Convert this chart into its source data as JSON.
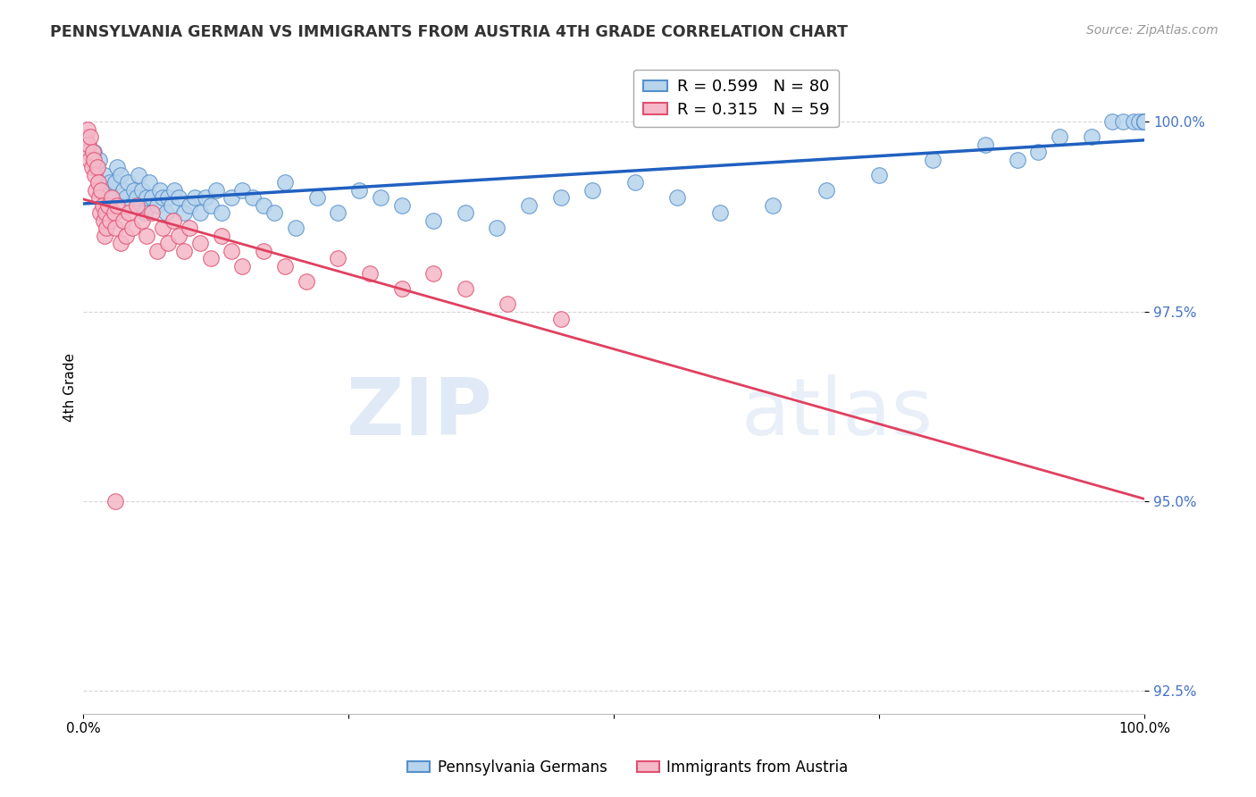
{
  "title": "PENNSYLVANIA GERMAN VS IMMIGRANTS FROM AUSTRIA 4TH GRADE CORRELATION CHART",
  "source": "Source: ZipAtlas.com",
  "ylabel": "4th Grade",
  "xlim": [
    0,
    100
  ],
  "ylim": [
    92.2,
    100.8
  ],
  "yticks": [
    92.5,
    95.0,
    97.5,
    100.0
  ],
  "ytick_labels": [
    "92.5%",
    "95.0%",
    "97.5%",
    "100.0%"
  ],
  "xticks": [
    0,
    25,
    50,
    75,
    100
  ],
  "xtick_labels": [
    "0.0%",
    "",
    "",
    "",
    "100.0%"
  ],
  "blue_R": 0.599,
  "blue_N": 80,
  "pink_R": 0.315,
  "pink_N": 59,
  "blue_color": "#b8d4ec",
  "pink_color": "#f5b8c8",
  "blue_edge_color": "#5590cc",
  "pink_edge_color": "#e05070",
  "blue_line_color": "#2060c0",
  "pink_line_color": "#e04060",
  "watermark_zip": "ZIP",
  "watermark_atlas": "atlas",
  "legend_blue": "Pennsylvania Germans",
  "legend_pink": "Immigrants from Austria",
  "blue_x": [
    1.0,
    1.2,
    1.5,
    2.0,
    2.3,
    2.5,
    2.8,
    3.0,
    3.2,
    3.5,
    3.8,
    4.0,
    4.2,
    4.5,
    4.8,
    5.0,
    5.2,
    5.5,
    5.8,
    6.0,
    6.2,
    6.5,
    7.0,
    7.2,
    7.5,
    7.8,
    8.0,
    8.3,
    8.6,
    9.0,
    9.5,
    10.0,
    10.5,
    11.0,
    11.5,
    12.0,
    12.5,
    13.0,
    14.0,
    15.0,
    16.0,
    17.0,
    18.0,
    19.0,
    20.0,
    22.0,
    24.0,
    26.0,
    28.0,
    30.0,
    33.0,
    36.0,
    39.0,
    42.0,
    45.0,
    48.0,
    52.0,
    56.0,
    60.0,
    65.0,
    70.0,
    75.0,
    80.0,
    85.0,
    88.0,
    90.0,
    92.0,
    95.0,
    97.0,
    98.0,
    99.0,
    99.5,
    100.0,
    100.0,
    100.0,
    100.0,
    100.0,
    100.0,
    100.0,
    100.0
  ],
  "blue_y": [
    99.6,
    99.4,
    99.5,
    99.3,
    99.1,
    99.2,
    99.0,
    99.2,
    99.4,
    99.3,
    99.1,
    99.0,
    99.2,
    98.9,
    99.1,
    99.0,
    99.3,
    99.1,
    98.8,
    99.0,
    99.2,
    99.0,
    98.9,
    99.1,
    99.0,
    98.8,
    99.0,
    98.9,
    99.1,
    99.0,
    98.8,
    98.9,
    99.0,
    98.8,
    99.0,
    98.9,
    99.1,
    98.8,
    99.0,
    99.1,
    99.0,
    98.9,
    98.8,
    99.2,
    98.6,
    99.0,
    98.8,
    99.1,
    99.0,
    98.9,
    98.7,
    98.8,
    98.6,
    98.9,
    99.0,
    99.1,
    99.2,
    99.0,
    98.8,
    98.9,
    99.1,
    99.3,
    99.5,
    99.7,
    99.5,
    99.6,
    99.8,
    99.8,
    100.0,
    100.0,
    100.0,
    100.0,
    100.0,
    100.0,
    100.0,
    100.0,
    100.0,
    100.0,
    100.0,
    100.0
  ],
  "pink_x": [
    0.2,
    0.3,
    0.4,
    0.5,
    0.6,
    0.7,
    0.8,
    0.9,
    1.0,
    1.1,
    1.2,
    1.3,
    1.4,
    1.5,
    1.6,
    1.7,
    1.8,
    1.9,
    2.0,
    2.1,
    2.2,
    2.3,
    2.5,
    2.7,
    2.9,
    3.0,
    3.2,
    3.5,
    3.8,
    4.0,
    4.3,
    4.6,
    5.0,
    5.5,
    6.0,
    6.5,
    7.0,
    7.5,
    8.0,
    8.5,
    9.0,
    9.5,
    10.0,
    11.0,
    12.0,
    13.0,
    14.0,
    15.0,
    17.0,
    19.0,
    21.0,
    24.0,
    27.0,
    30.0,
    33.0,
    36.0,
    40.0,
    45.0,
    3.0
  ],
  "pink_y": [
    99.8,
    99.6,
    99.9,
    99.7,
    99.5,
    99.8,
    99.4,
    99.6,
    99.5,
    99.3,
    99.1,
    99.4,
    99.2,
    99.0,
    98.8,
    99.1,
    98.9,
    98.7,
    98.5,
    98.8,
    98.6,
    98.9,
    98.7,
    99.0,
    98.8,
    98.6,
    98.9,
    98.4,
    98.7,
    98.5,
    98.8,
    98.6,
    98.9,
    98.7,
    98.5,
    98.8,
    98.3,
    98.6,
    98.4,
    98.7,
    98.5,
    98.3,
    98.6,
    98.4,
    98.2,
    98.5,
    98.3,
    98.1,
    98.3,
    98.1,
    97.9,
    98.2,
    98.0,
    97.8,
    98.0,
    97.8,
    97.6,
    97.4,
    95.0
  ]
}
